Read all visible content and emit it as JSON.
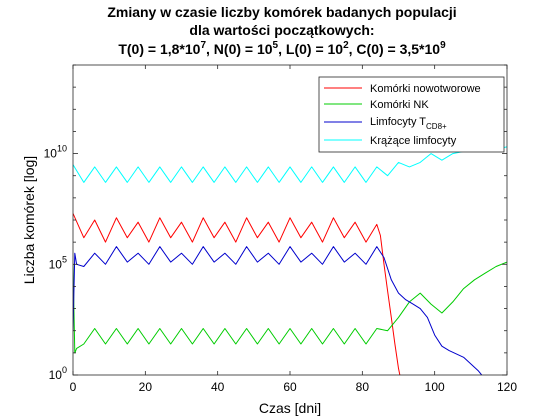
{
  "chart_data": {
    "type": "line",
    "title_lines": [
      "Zmiany w czasie liczby komórek badanych populacji",
      "dla wartości początkowych:"
    ],
    "conditions": [
      {
        "prefix": "T(0) = 1,8*10",
        "exp": "7"
      },
      {
        "prefix": ", N(0) = 10",
        "exp": "5"
      },
      {
        "prefix": ", L(0) = 10",
        "exp": "2"
      },
      {
        "prefix": ", C(0) = 3,5*10",
        "exp": "9"
      }
    ],
    "xlabel": "Czas [dni]",
    "ylabel": "Liczba komórek [log]",
    "xlim": [
      0,
      120
    ],
    "ylim_log10": [
      0,
      14
    ],
    "yscale": "log",
    "grid": false,
    "legend_position": "top-right",
    "x_ticks": [
      0,
      20,
      40,
      60,
      80,
      100,
      120
    ],
    "y_ticks": [
      {
        "base": "10",
        "exp": "0",
        "log10": 0
      },
      {
        "base": "10",
        "exp": "5",
        "log10": 5
      },
      {
        "base": "10",
        "exp": "10",
        "log10": 10
      }
    ],
    "series": [
      {
        "name": "Komórki nowotworowe",
        "color": "#ff0000",
        "log10_values": {
          "x": [
            0,
            3,
            6,
            9,
            12,
            15,
            18,
            21,
            24,
            27,
            30,
            33,
            36,
            39,
            42,
            45,
            48,
            51,
            54,
            57,
            60,
            63,
            66,
            69,
            72,
            75,
            78,
            81,
            84,
            85,
            86,
            87,
            88,
            89,
            90,
            91
          ],
          "y": [
            7.3,
            6.2,
            7.0,
            6.0,
            7.1,
            6.2,
            6.9,
            6.0,
            7.1,
            6.2,
            6.9,
            6.0,
            7.1,
            6.2,
            6.9,
            6.0,
            7.1,
            6.2,
            6.9,
            6.0,
            7.1,
            6.2,
            6.9,
            6.0,
            7.1,
            6.2,
            6.9,
            6.0,
            6.8,
            6.3,
            5.0,
            3.8,
            2.6,
            1.4,
            0.3,
            -0.5
          ]
        }
      },
      {
        "name": "Komórki NK",
        "color": "#00cc00",
        "log10_values": {
          "x": [
            0,
            0.5,
            1,
            3,
            6,
            9,
            12,
            15,
            18,
            21,
            24,
            27,
            30,
            33,
            36,
            39,
            42,
            45,
            48,
            51,
            54,
            57,
            60,
            63,
            66,
            69,
            72,
            75,
            78,
            81,
            84,
            87,
            90,
            93,
            96,
            99,
            102,
            105,
            108,
            111,
            114,
            117,
            120
          ],
          "y": [
            5.0,
            1.0,
            1.2,
            1.4,
            2.1,
            1.4,
            2.1,
            1.4,
            2.1,
            1.4,
            2.1,
            1.4,
            2.1,
            1.4,
            2.1,
            1.4,
            2.1,
            1.4,
            2.1,
            1.4,
            2.1,
            1.4,
            2.1,
            1.4,
            2.1,
            1.4,
            2.1,
            1.4,
            2.1,
            1.4,
            2.1,
            2.0,
            2.6,
            3.3,
            3.7,
            3.2,
            2.8,
            3.3,
            3.9,
            4.3,
            4.6,
            4.9,
            5.1
          ]
        }
      },
      {
        "name": "Limfocyty T",
        "name_subscript": "CD8+",
        "color": "#0000cc",
        "log10_values": {
          "x": [
            0,
            0.5,
            1,
            3,
            6,
            9,
            12,
            15,
            18,
            21,
            24,
            27,
            30,
            33,
            36,
            39,
            42,
            45,
            48,
            51,
            54,
            57,
            60,
            63,
            66,
            69,
            72,
            75,
            78,
            81,
            84,
            86,
            88,
            90,
            92,
            94,
            96,
            98,
            100,
            102,
            104,
            108,
            112,
            113
          ],
          "y": [
            2.0,
            5.5,
            5.0,
            4.9,
            5.5,
            5.0,
            5.8,
            5.1,
            5.5,
            5.0,
            5.8,
            5.1,
            5.5,
            5.0,
            5.8,
            5.1,
            5.5,
            5.0,
            5.8,
            5.1,
            5.5,
            5.0,
            5.8,
            5.1,
            5.5,
            5.0,
            5.8,
            5.1,
            5.5,
            5.0,
            5.8,
            5.3,
            4.3,
            3.7,
            3.4,
            3.2,
            3.0,
            2.6,
            1.8,
            1.3,
            1.1,
            0.8,
            0.2,
            0.0
          ]
        }
      },
      {
        "name": "Krążące limfocyty",
        "color": "#00ffff",
        "log10_values": {
          "x": [
            0,
            3,
            6,
            9,
            12,
            15,
            18,
            21,
            24,
            27,
            30,
            33,
            36,
            39,
            42,
            45,
            48,
            51,
            54,
            57,
            60,
            63,
            66,
            69,
            72,
            75,
            78,
            81,
            84,
            87,
            90,
            93,
            96,
            99,
            102,
            105,
            108,
            111,
            114,
            117,
            120
          ],
          "y": [
            9.5,
            8.7,
            9.4,
            8.7,
            9.4,
            8.7,
            9.4,
            8.7,
            9.4,
            8.7,
            9.4,
            8.7,
            9.4,
            8.7,
            9.4,
            8.7,
            9.4,
            8.7,
            9.4,
            8.7,
            9.4,
            8.7,
            9.4,
            8.7,
            9.4,
            8.7,
            9.4,
            8.7,
            9.4,
            9.0,
            9.6,
            9.4,
            9.6,
            10.0,
            9.7,
            10.0,
            10.1,
            10.2,
            10.2,
            10.2,
            10.3
          ]
        }
      }
    ]
  }
}
